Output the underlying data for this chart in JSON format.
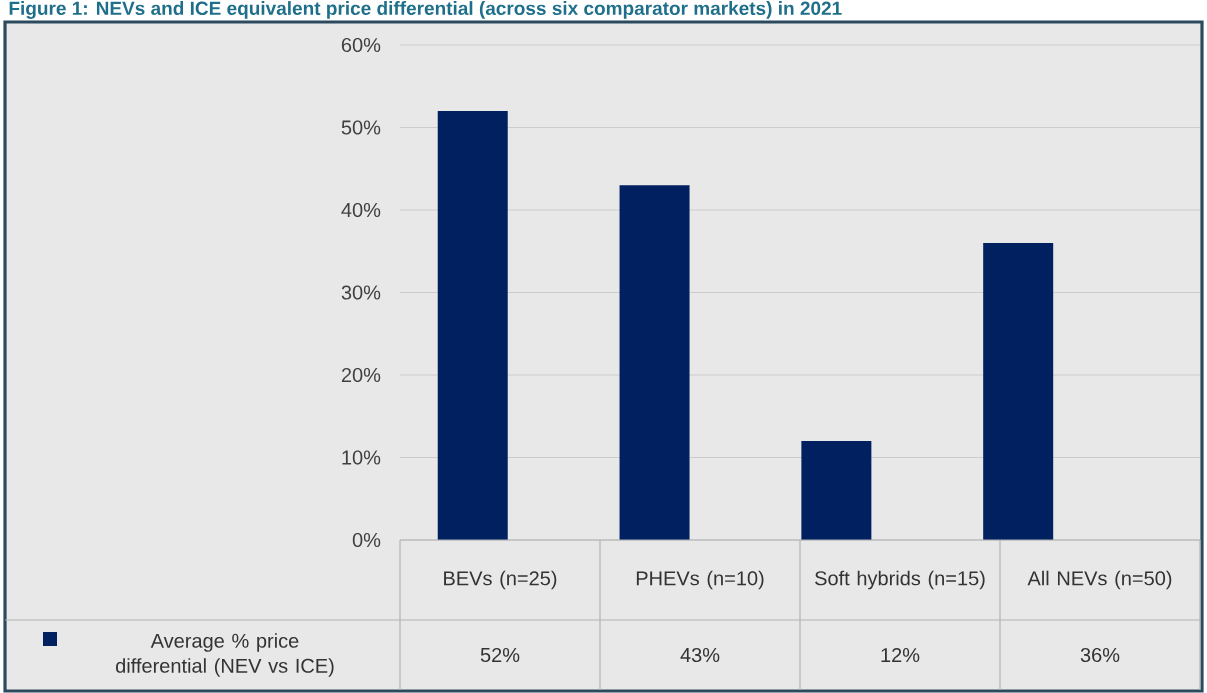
{
  "chart_data": {
    "type": "bar",
    "title": "Figure 1: NEVs and ICE equivalent price differential (across six comparator markets) in 2021",
    "categories": [
      "BEVs (n=25)",
      "PHEVs (n=10)",
      "Soft hybrids (n=15)",
      "All NEVs (n=50)"
    ],
    "series": [
      {
        "name": "Average % price differential (NEV vs ICE)",
        "color": "#002060",
        "values": [
          52,
          43,
          12,
          36
        ],
        "value_labels": [
          "52%",
          "43%",
          "12%",
          "36%"
        ]
      }
    ],
    "ylim": [
      0,
      60
    ],
    "yticks": [
      {
        "value": 0,
        "label": "0%"
      },
      {
        "value": 10,
        "label": "10%"
      },
      {
        "value": 20,
        "label": "20%"
      },
      {
        "value": 30,
        "label": "30%"
      },
      {
        "value": 40,
        "label": "40%"
      },
      {
        "value": 50,
        "label": "50%"
      },
      {
        "value": 60,
        "label": "60%"
      }
    ],
    "grid": "y",
    "legend": "bottom"
  }
}
